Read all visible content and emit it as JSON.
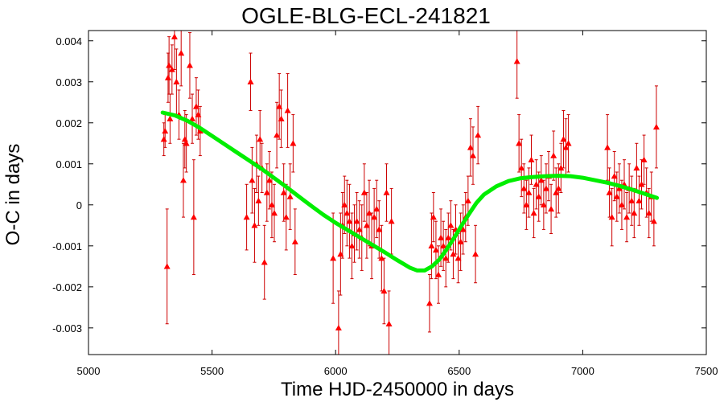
{
  "chart_data": {
    "type": "scatter",
    "title": "OGLE-BLG-ECL-241821",
    "xlabel": "Time HJD-2450000 in days",
    "ylabel": "O-C in days",
    "xlim": [
      5000,
      7500
    ],
    "ylim": [
      -0.00365,
      0.00425
    ],
    "xticks": [
      5000,
      5500,
      6000,
      6500,
      7000,
      7500
    ],
    "xtick_labels": [
      "5000",
      "5500",
      "6000",
      "6500",
      "7000",
      "7500"
    ],
    "yticks": [
      -0.003,
      -0.002,
      -0.001,
      0,
      0.001,
      0.002,
      0.003,
      0.004
    ],
    "ytick_labels": [
      "-0.003",
      "-0.002",
      "-0.001",
      "0",
      "0.001",
      "0.002",
      "0.003",
      "0.004"
    ],
    "grid": false,
    "legend": "none",
    "colors": {
      "points": "#ff0000",
      "errorbars": "#cc0000",
      "fit": "#00ee00"
    },
    "series": [
      {
        "type": "scatter_errorbar",
        "marker": "triangle",
        "points": [
          [
            5305,
            0.0016,
            0.0004
          ],
          [
            5310,
            0.0018,
            0.0004
          ],
          [
            5318,
            -0.0015,
            0.0014
          ],
          [
            5322,
            0.0031,
            0.0006
          ],
          [
            5326,
            0.0034,
            0.0007
          ],
          [
            5330,
            0.0021,
            0.0006
          ],
          [
            5338,
            0.0033,
            0.0006
          ],
          [
            5348,
            0.0041,
            0.0008
          ],
          [
            5356,
            0.003,
            0.0008
          ],
          [
            5366,
            0.0022,
            0.0006
          ],
          [
            5375,
            0.0037,
            0.0008
          ],
          [
            5384,
            0.0006,
            0.0009
          ],
          [
            5390,
            0.0016,
            0.0007
          ],
          [
            5396,
            0.0015,
            0.0007
          ],
          [
            5410,
            0.0034,
            0.0008
          ],
          [
            5420,
            0.0021,
            0.0006
          ],
          [
            5426,
            -0.0003,
            0.0014
          ],
          [
            5436,
            0.0024,
            0.0007
          ],
          [
            5444,
            0.0022,
            0.0006
          ],
          [
            5452,
            0.0018,
            0.0006
          ],
          [
            5640,
            -0.0003,
            0.0008
          ],
          [
            5656,
            0.003,
            0.0007
          ],
          [
            5662,
            0.0006,
            0.0008
          ],
          [
            5672,
            -0.0005,
            0.0009
          ],
          [
            5680,
            0.001,
            0.0007
          ],
          [
            5688,
            0.0001,
            0.0006
          ],
          [
            5694,
            0.0016,
            0.0007
          ],
          [
            5702,
            0.0009,
            0.0006
          ],
          [
            5712,
            -0.0014,
            0.0009
          ],
          [
            5722,
            0.0003,
            0.0007
          ],
          [
            5732,
            0.0006,
            0.0007
          ],
          [
            5742,
            0.0,
            0.0008
          ],
          [
            5752,
            -0.0002,
            0.0007
          ],
          [
            5762,
            0.0017,
            0.0008
          ],
          [
            5772,
            0.0024,
            0.0008
          ],
          [
            5780,
            0.0021,
            0.0007
          ],
          [
            5790,
            0.0003,
            0.0007
          ],
          [
            5800,
            -0.0003,
            0.0008
          ],
          [
            5806,
            0.0023,
            0.0009
          ],
          [
            5816,
            0.0002,
            0.0008
          ],
          [
            5828,
            0.0015,
            0.0007
          ],
          [
            5836,
            -0.0009,
            0.0008
          ],
          [
            5990,
            -0.0013,
            0.0011
          ],
          [
            6012,
            -0.003,
            0.0009
          ],
          [
            6020,
            -0.0012,
            0.001
          ],
          [
            6028,
            -0.0005,
            0.0008
          ],
          [
            6036,
            0.0,
            0.0007
          ],
          [
            6046,
            -0.0002,
            0.0008
          ],
          [
            6056,
            -0.0004,
            0.0009
          ],
          [
            6066,
            -0.001,
            0.0008
          ],
          [
            6076,
            -0.0007,
            0.0007
          ],
          [
            6086,
            -0.0004,
            0.0007
          ],
          [
            6096,
            -0.0006,
            0.0007
          ],
          [
            6106,
            -0.0008,
            0.0008
          ],
          [
            6116,
            0.0003,
            0.0007
          ],
          [
            6126,
            -0.0005,
            0.0008
          ],
          [
            6136,
            -0.0002,
            0.0008
          ],
          [
            6146,
            -0.001,
            0.0008
          ],
          [
            6156,
            -0.0003,
            0.0007
          ],
          [
            6166,
            -0.0001,
            0.0007
          ],
          [
            6176,
            -0.0006,
            0.0007
          ],
          [
            6186,
            -0.0013,
            0.0008
          ],
          [
            6196,
            -0.0021,
            0.0008
          ],
          [
            6206,
            0.0003,
            0.0007
          ],
          [
            6216,
            -0.0029,
            0.0008
          ],
          [
            6226,
            -0.0004,
            0.0008
          ],
          [
            6380,
            -0.0024,
            0.0007
          ],
          [
            6388,
            -0.001,
            0.0008
          ],
          [
            6396,
            -0.0003,
            0.0006
          ],
          [
            6406,
            -0.0011,
            0.0007
          ],
          [
            6416,
            -0.0017,
            0.0007
          ],
          [
            6426,
            -0.0008,
            0.0007
          ],
          [
            6436,
            -0.001,
            0.0006
          ],
          [
            6446,
            -0.0013,
            0.0007
          ],
          [
            6456,
            -0.0008,
            0.0006
          ],
          [
            6466,
            -0.0005,
            0.0006
          ],
          [
            6476,
            -0.0012,
            0.0006
          ],
          [
            6486,
            -0.0006,
            0.0006
          ],
          [
            6496,
            -0.0013,
            0.0006
          ],
          [
            6506,
            -0.0009,
            0.0007
          ],
          [
            6516,
            -0.0006,
            0.0006
          ],
          [
            6526,
            -0.0003,
            0.0006
          ],
          [
            6536,
            0.0001,
            0.0006
          ],
          [
            6546,
            0.0014,
            0.0007
          ],
          [
            6556,
            0.0012,
            0.0007
          ],
          [
            6566,
            -0.0012,
            0.0007
          ],
          [
            6576,
            0.0017,
            0.0007
          ],
          [
            6734,
            0.0035,
            0.0009
          ],
          [
            6742,
            0.0015,
            0.0007
          ],
          [
            6752,
            0.0009,
            0.0007
          ],
          [
            6762,
            0.0004,
            0.0006
          ],
          [
            6772,
            0.0,
            0.0006
          ],
          [
            6782,
            0.0003,
            0.0006
          ],
          [
            6792,
            0.0011,
            0.0006
          ],
          [
            6802,
            -0.0002,
            0.0006
          ],
          [
            6812,
            0.0005,
            0.0006
          ],
          [
            6822,
            0.0002,
            0.0006
          ],
          [
            6832,
            0.0006,
            0.0006
          ],
          [
            6842,
            0.0,
            0.0006
          ],
          [
            6852,
            0.0004,
            0.0006
          ],
          [
            6862,
            0.0007,
            0.0006
          ],
          [
            6872,
            -0.0001,
            0.0006
          ],
          [
            6882,
            0.0012,
            0.0006
          ],
          [
            6892,
            0.0003,
            0.0006
          ],
          [
            6902,
            0.0004,
            0.0006
          ],
          [
            6912,
            0.0009,
            0.0006
          ],
          [
            6922,
            0.0016,
            0.0007
          ],
          [
            6932,
            0.0014,
            0.0007
          ],
          [
            6942,
            0.0015,
            0.0007
          ],
          [
            7100,
            0.0014,
            0.0008
          ],
          [
            7108,
            0.0003,
            0.0006
          ],
          [
            7118,
            -0.0003,
            0.0007
          ],
          [
            7128,
            0.0007,
            0.0006
          ],
          [
            7138,
            0.0002,
            0.0006
          ],
          [
            7148,
            0.0004,
            0.0006
          ],
          [
            7158,
            0.0,
            0.0006
          ],
          [
            7168,
            0.0005,
            0.0006
          ],
          [
            7178,
            -0.0003,
            0.0006
          ],
          [
            7188,
            0.0004,
            0.0006
          ],
          [
            7198,
            0.0001,
            0.0006
          ],
          [
            7208,
            -0.0002,
            0.0006
          ],
          [
            7218,
            0.0009,
            0.0006
          ],
          [
            7228,
            0.0001,
            0.0006
          ],
          [
            7238,
            0.0005,
            0.0006
          ],
          [
            7248,
            0.0011,
            0.0006
          ],
          [
            7258,
            0.0003,
            0.0006
          ],
          [
            7268,
            -0.0002,
            0.0006
          ],
          [
            7278,
            0.0002,
            0.0006
          ],
          [
            7288,
            -0.0004,
            0.0006
          ],
          [
            7298,
            0.0019,
            0.001
          ]
        ]
      },
      {
        "type": "line",
        "points": [
          [
            5300,
            0.00225
          ],
          [
            5350,
            0.00218
          ],
          [
            5400,
            0.00205
          ],
          [
            5450,
            0.00188
          ],
          [
            5500,
            0.00168
          ],
          [
            5550,
            0.00148
          ],
          [
            5600,
            0.00128
          ],
          [
            5650,
            0.00108
          ],
          [
            5700,
            0.00088
          ],
          [
            5750,
            0.00066
          ],
          [
            5800,
            0.00044
          ],
          [
            5850,
            0.00021
          ],
          [
            5900,
            -2e-05
          ],
          [
            5950,
            -0.00024
          ],
          [
            6000,
            -0.00044
          ],
          [
            6050,
            -0.00062
          ],
          [
            6100,
            -0.0008
          ],
          [
            6150,
            -0.00098
          ],
          [
            6200,
            -0.00116
          ],
          [
            6250,
            -0.00135
          ],
          [
            6300,
            -0.00153
          ],
          [
            6330,
            -0.0016
          ],
          [
            6360,
            -0.0016
          ],
          [
            6390,
            -0.0015
          ],
          [
            6420,
            -0.00133
          ],
          [
            6450,
            -0.00108
          ],
          [
            6480,
            -0.0008
          ],
          [
            6510,
            -0.0005
          ],
          [
            6540,
            -0.00022
          ],
          [
            6570,
            5e-05
          ],
          [
            6600,
            0.00025
          ],
          [
            6650,
            0.00045
          ],
          [
            6700,
            0.00058
          ],
          [
            6750,
            0.00065
          ],
          [
            6800,
            0.00068
          ],
          [
            6850,
            0.0007
          ],
          [
            6900,
            0.00071
          ],
          [
            6950,
            0.0007
          ],
          [
            7000,
            0.00066
          ],
          [
            7050,
            0.0006
          ],
          [
            7100,
            0.00054
          ],
          [
            7150,
            0.00046
          ],
          [
            7200,
            0.00037
          ],
          [
            7250,
            0.00027
          ],
          [
            7300,
            0.00017
          ]
        ]
      }
    ]
  }
}
